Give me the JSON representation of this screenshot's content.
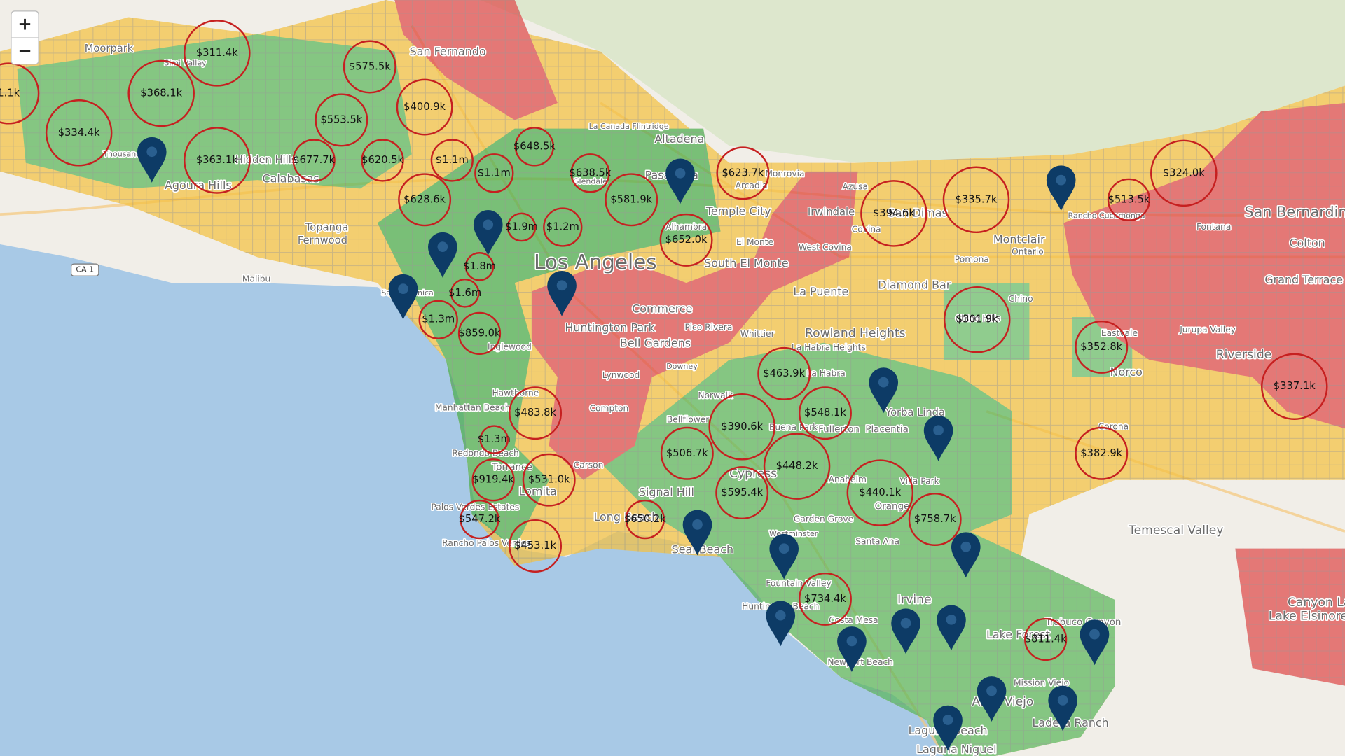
{
  "zoom_controls": {
    "zoom_in": "+",
    "zoom_out": "−"
  },
  "route_shield": "CA 1",
  "place_labels": [
    "Moorpark",
    "Simi Valley",
    "San Fernando",
    "Thousand Oaks",
    "Agoura Hills",
    "Hidden Hills",
    "Calabasas",
    "La Canada Flintridge",
    "Altadena",
    "Pasadena",
    "Arcadia",
    "Monrovia",
    "Azusa",
    "Glendale",
    "Temple City",
    "Irwindale",
    "San Dimas",
    "Covina",
    "Montclair",
    "Ontario",
    "Rancho Cucamonga",
    "Fontana",
    "San Bernardino",
    "Colton",
    "Grand Terrace",
    "Topanga",
    "Fernwood",
    "Malibu",
    "Alhambra",
    "El Monte",
    "West Covina",
    "Los Angeles",
    "South El Monte",
    "Pomona",
    "Diamond Bar",
    "Chino",
    "Santa Monica",
    "La Puente",
    "Commerce",
    "Huntington Park",
    "Pico Rivera",
    "Whittier",
    "Rowland Heights",
    "Chino Hills",
    "Eastvale",
    "Jurupa Valley",
    "Bell Gardens",
    "La Habra Heights",
    "Inglewood",
    "Riverside",
    "Lynwood",
    "Downey",
    "La Habra",
    "Norco",
    "Hawthorne",
    "Norwalk",
    "Manhattan Beach",
    "Compton",
    "Yorba Linda",
    "Bellflower",
    "Buena Park",
    "Fullerton",
    "Corona",
    "Placentia",
    "Redondo Beach",
    "Torrance",
    "Carson",
    "Cypress",
    "Anaheim",
    "Villa Park",
    "Lomita",
    "Signal Hill",
    "Orange",
    "Palos Verdes Estates",
    "Long Beach",
    "Garden Grove",
    "Rancho Palos Verdes",
    "Seal Beach",
    "Westminster",
    "Santa Ana",
    "Temescal Valley",
    "Fountain Valley",
    "Huntington Beach",
    "Irvine",
    "Costa Mesa",
    "Lake Forest",
    "Trabuco Canyon",
    "Canyon Lake",
    "Lake Elsinore",
    "Newport Beach",
    "Mission Viejo",
    "Aliso Viejo",
    "Laguna Beach",
    "Ladera Ranch",
    "Laguna Niguel"
  ],
  "price_markers": [
    "$311.4k",
    "$368.1k",
    "$334.4k",
    "$363.1k",
    "$575.5k",
    "$553.5k",
    "$400.9k",
    "$677.7k",
    "$620.5k",
    "$1.1m",
    "$1.1m",
    "$648.5k",
    "$638.5k",
    "$623.7k",
    "$628.6k",
    "$581.9k",
    "$1.9m",
    "$1.2m",
    "$652.0k",
    "$1.8m",
    "$1.6m",
    "$1.3m",
    "$859.0k",
    "$394.6k",
    "$335.7k",
    "$513.5k",
    "$324.0k",
    "$301.9k",
    "$352.8k",
    "$337.1k",
    "$463.9k",
    "$483.8k",
    "$548.1k",
    "$390.6k",
    "$1.3m",
    "$506.7k",
    "$448.2k",
    "$382.9k",
    "$919.4k",
    "$531.0k",
    "$440.1k",
    "$595.4k",
    "$547.2k",
    "$650.2k",
    "$758.7k",
    "$453.1k",
    "$734.4k",
    "$811.4k",
    "1.1k"
  ]
}
